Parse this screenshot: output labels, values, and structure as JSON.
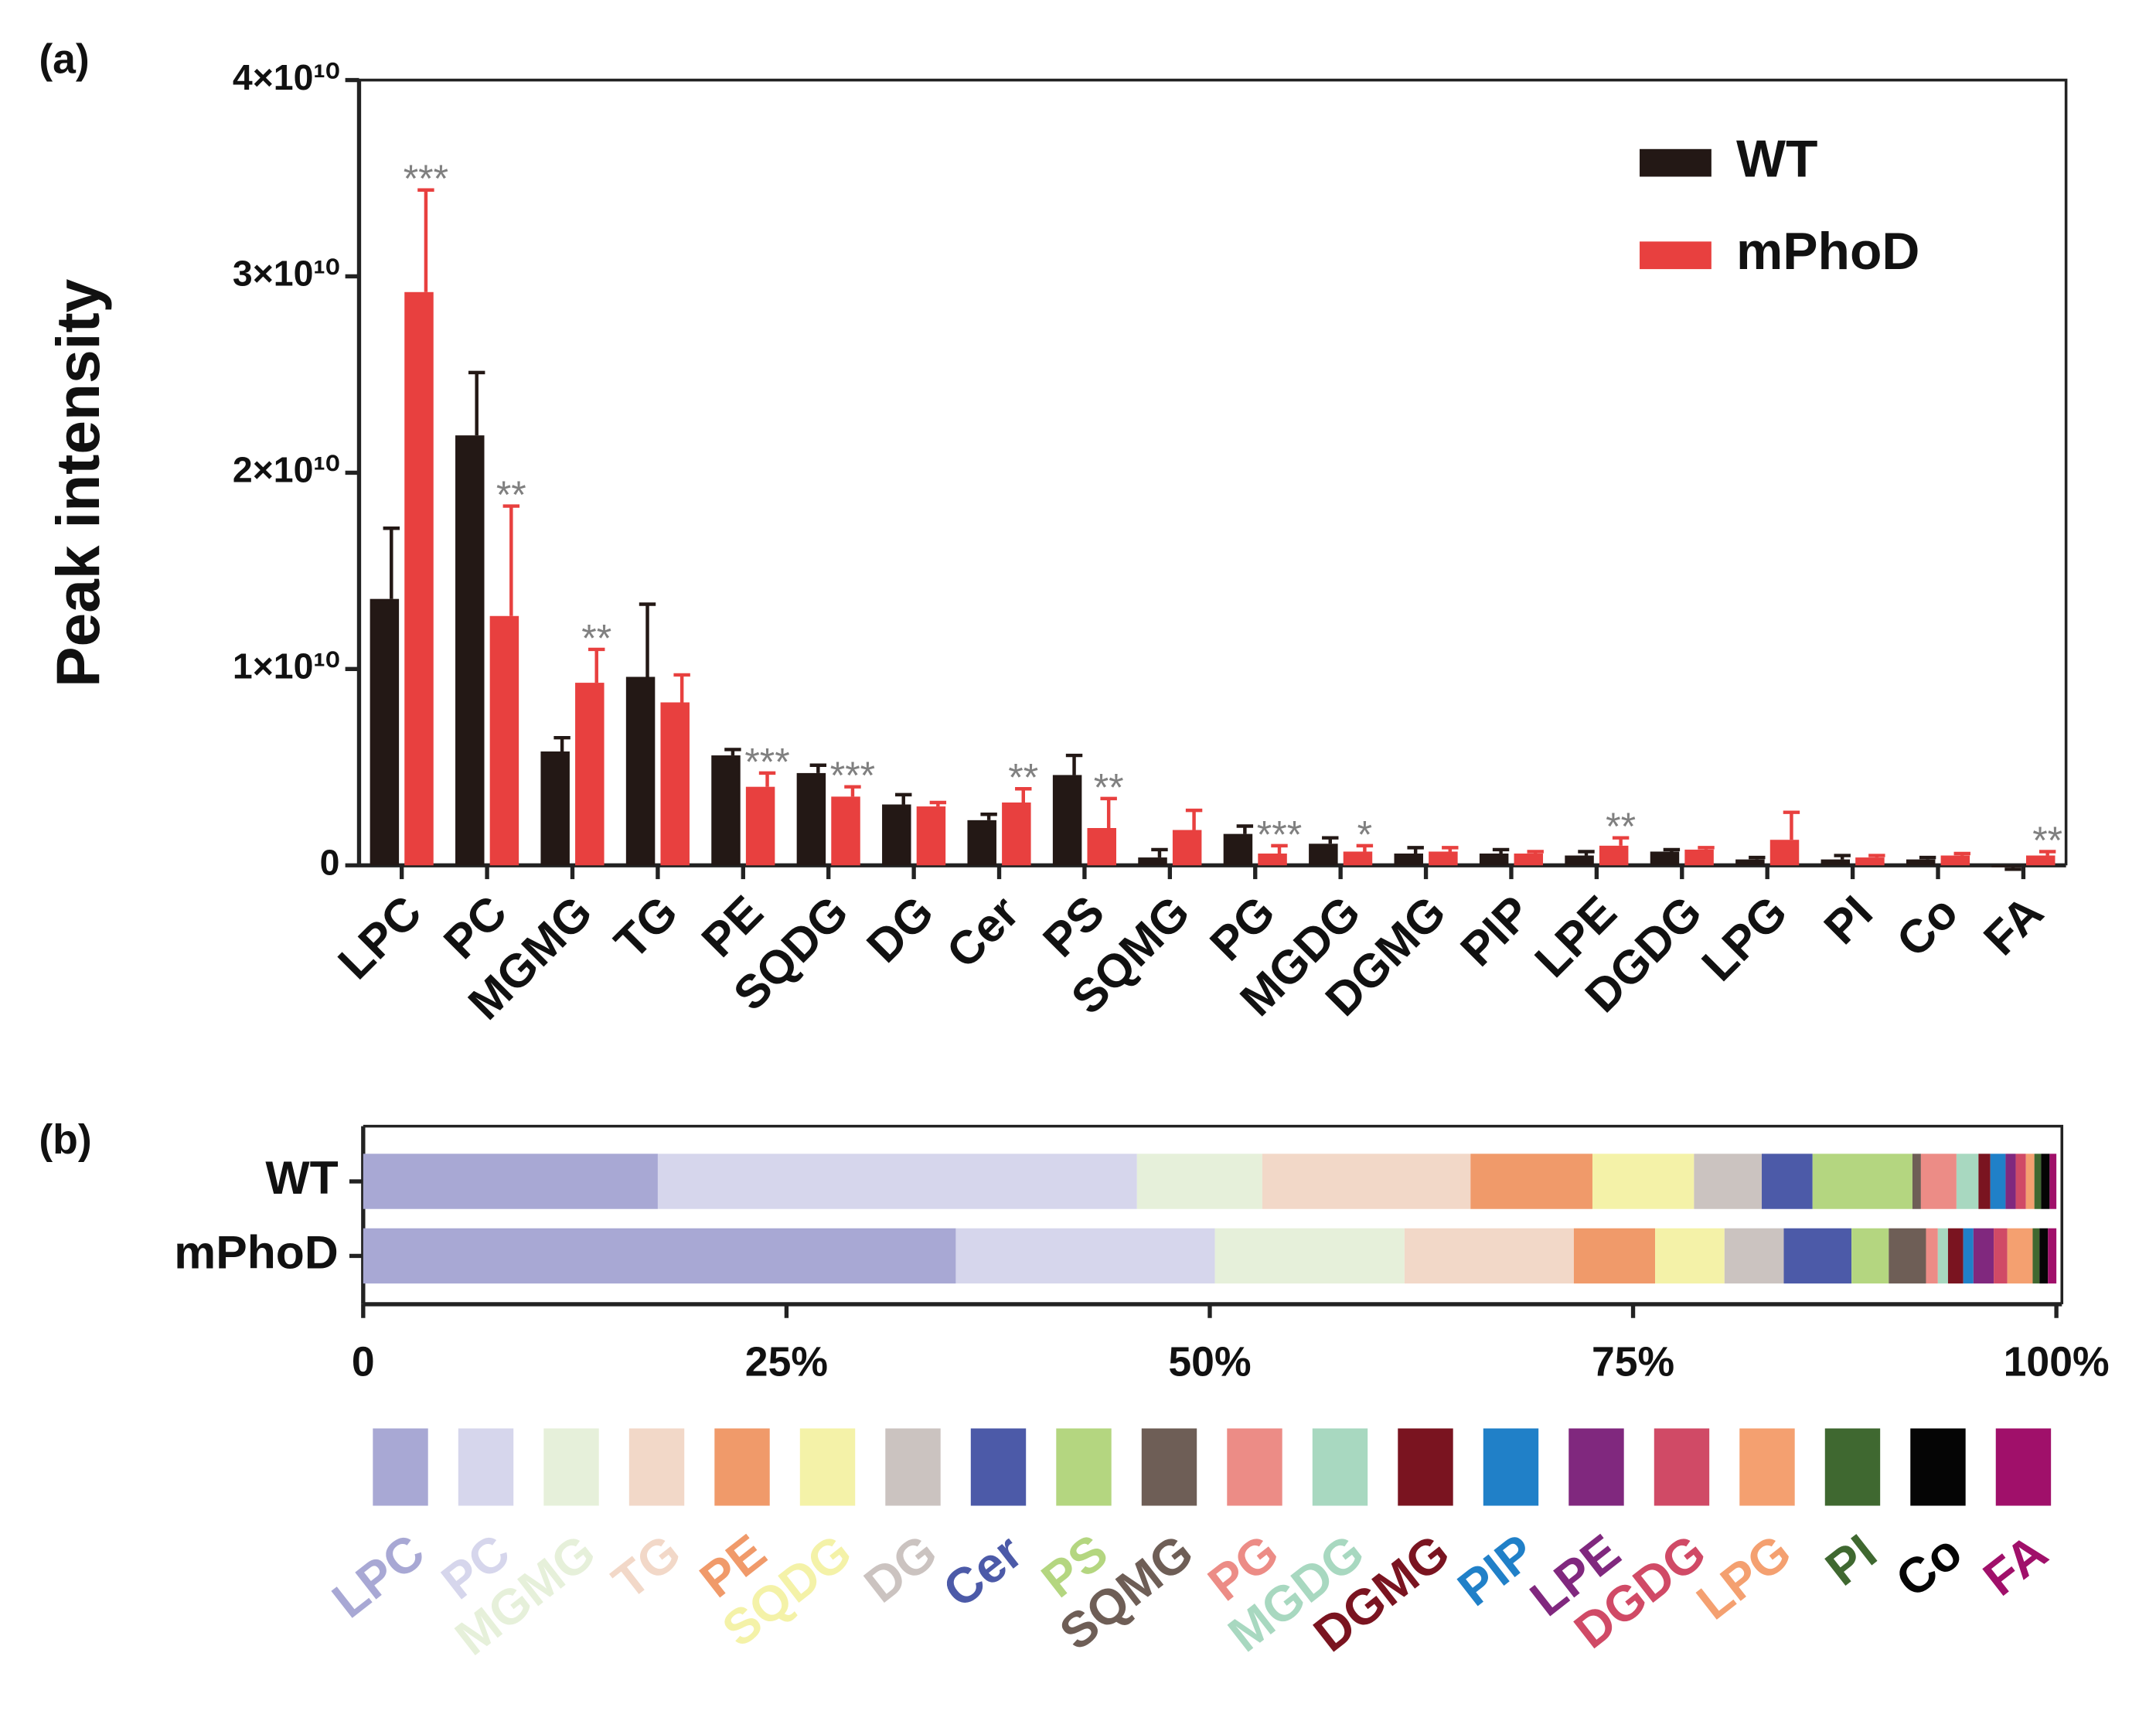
{
  "chart_data": [
    {
      "type": "bar",
      "panel": "(a)",
      "ylabel": "Peak intensity",
      "categories": [
        "LPC",
        "PC",
        "MGMG",
        "TG",
        "PE",
        "SQDG",
        "DG",
        "Cer",
        "PS",
        "SQMG",
        "PG",
        "MGDG",
        "DGMG",
        "PIP",
        "LPE",
        "DGDG",
        "LPG",
        "PI",
        "Co",
        "FA"
      ],
      "series": [
        {
          "name": "WT",
          "color": "#231815",
          "values": [
            13570000000.0,
            21900000000.0,
            5800000000.0,
            9600000000.0,
            5600000000.0,
            4700000000.0,
            3100000000.0,
            2300000000.0,
            4600000000.0,
            400000000.0,
            1600000000.0,
            1100000000.0,
            600000000.0,
            600000000.0,
            500000000.0,
            700000000.0,
            300000000.0,
            300000000.0,
            300000000.0,
            -100000000.0
          ],
          "errors": [
            3600000000.0,
            3200000000.0,
            700000000.0,
            3700000000.0,
            300000000.0,
            400000000.0,
            500000000.0,
            300000000.0,
            1000000000.0,
            400000000.0,
            400000000.0,
            300000000.0,
            300000000.0,
            200000000.0,
            200000000.0,
            100000000.0,
            100000000.0,
            200000000.0,
            100000000.0,
            100000000.0
          ]
        },
        {
          "name": "mPhoD",
          "color": "#e8403f",
          "values": [
            29200000000.0,
            12700000000.0,
            9300000000.0,
            8300000000.0,
            4000000000.0,
            3500000000.0,
            3000000000.0,
            3200000000.0,
            1900000000.0,
            1800000000.0,
            600000000.0,
            700000000.0,
            700000000.0,
            600000000.0,
            1000000000.0,
            800000000.0,
            1300000000.0,
            400000000.0,
            500000000.0,
            500000000.0
          ],
          "errors": [
            5200000000.0,
            5600000000.0,
            1700000000.0,
            1400000000.0,
            700000000.0,
            500000000.0,
            200000000.0,
            700000000.0,
            1500000000.0,
            1000000000.0,
            400000000.0,
            300000000.0,
            200000000.0,
            100000000.0,
            400000000.0,
            100000000.0,
            1400000000.0,
            100000000.0,
            100000000.0,
            200000000.0
          ]
        }
      ],
      "significance": [
        "***",
        "**",
        "**",
        null,
        "***",
        "***",
        null,
        "**",
        "**",
        null,
        "***",
        "*",
        null,
        null,
        "**",
        null,
        null,
        null,
        null,
        "**"
      ],
      "ylim": [
        0,
        40000000000.0
      ],
      "yticks": [
        0,
        {
          "value": 10000000000.0,
          "label": "1×10¹⁰"
        },
        {
          "value": 20000000000.0,
          "label": "2×10¹⁰"
        },
        {
          "value": 30000000000.0,
          "label": "3×10¹⁰"
        },
        {
          "value": 40000000000.0,
          "label": "4×10¹⁰"
        }
      ],
      "legend": "upper right"
    },
    {
      "type": "stacked_barh",
      "panel": "(b)",
      "categories": [
        "WT",
        "mPhoD"
      ],
      "series": [
        {
          "name": "LPC",
          "color": "#a8a8d4",
          "values": [
            17.4,
            35.0
          ]
        },
        {
          "name": "PC",
          "color": "#d6d6ec",
          "values": [
            28.3,
            15.3
          ]
        },
        {
          "name": "MGMG",
          "color": "#e6f0da",
          "values": [
            7.4,
            11.2
          ]
        },
        {
          "name": "TG",
          "color": "#f2d8c8",
          "values": [
            12.3,
            10.0
          ]
        },
        {
          "name": "PE",
          "color": "#f09a6a",
          "values": [
            7.2,
            4.8
          ]
        },
        {
          "name": "SQDG",
          "color": "#f4f2a8",
          "values": [
            6.0,
            4.1
          ]
        },
        {
          "name": "DG",
          "color": "#cbc3c0",
          "values": [
            4.0,
            3.5
          ]
        },
        {
          "name": "Cer",
          "color": "#4c5aa8",
          "values": [
            3.0,
            4.0
          ]
        },
        {
          "name": "PS",
          "color": "#b4d680",
          "values": [
            5.9,
            2.2
          ]
        },
        {
          "name": "SQMG",
          "color": "#6e5e56",
          "values": [
            0.5,
            2.2
          ]
        },
        {
          "name": "PG",
          "color": "#ec8c86",
          "values": [
            2.1,
            0.7
          ]
        },
        {
          "name": "MGDG",
          "color": "#a8d8c0",
          "values": [
            1.3,
            0.6
          ]
        },
        {
          "name": "DGMG",
          "color": "#7a1420",
          "values": [
            0.7,
            0.9
          ]
        },
        {
          "name": "PIP",
          "color": "#2080c8",
          "values": [
            0.9,
            0.6
          ]
        },
        {
          "name": "LPE",
          "color": "#80287e",
          "values": [
            0.6,
            1.2
          ]
        },
        {
          "name": "DGDG",
          "color": "#d04a66",
          "values": [
            0.6,
            0.8
          ]
        },
        {
          "name": "LPG",
          "color": "#f4a070",
          "values": [
            0.5,
            1.5
          ]
        },
        {
          "name": "PI",
          "color": "#3f6830",
          "values": [
            0.4,
            0.4
          ]
        },
        {
          "name": "Co",
          "color": "#050505",
          "values": [
            0.5,
            0.5
          ]
        },
        {
          "name": "FA",
          "color": "#a0106a",
          "values": [
            0.4,
            0.5
          ]
        }
      ],
      "xlim": [
        0,
        100
      ],
      "xticks": [
        0,
        {
          "value": 25,
          "label": "25%"
        },
        {
          "value": 50,
          "label": "50%"
        },
        {
          "value": 75,
          "label": "75%"
        },
        {
          "value": 100,
          "label": "100%"
        }
      ]
    }
  ]
}
